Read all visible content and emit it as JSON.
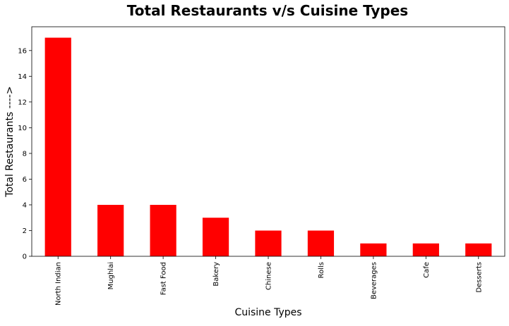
{
  "chart_data": {
    "type": "bar",
    "title": "Total Restaurants v/s Cuisine Types",
    "xlabel": "Cuisine Types",
    "ylabel": "Total Restaurants ---->",
    "categories": [
      "North Indian",
      "Mughlai",
      "Fast Food",
      "Bakery",
      "Chinese",
      "Rolls",
      "Beverages",
      "Cafe",
      "Desserts"
    ],
    "values": [
      17,
      4,
      4,
      3,
      2,
      2,
      1,
      1,
      1
    ],
    "ylim": [
      0,
      17.85
    ],
    "yticks": [
      "0",
      "2",
      "4",
      "6",
      "8",
      "10",
      "12",
      "14",
      "16"
    ],
    "bar_color": "#ff0000",
    "grid": false,
    "legend": false
  }
}
